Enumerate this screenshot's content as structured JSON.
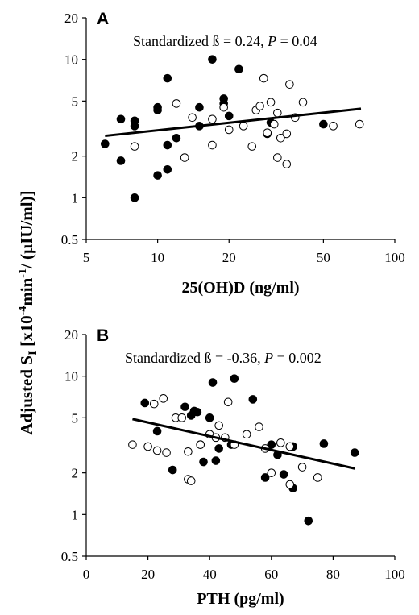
{
  "figure": {
    "ylabel_shared": "Adjusted S",
    "ylabel_sub": "I",
    "ylabel_rest": " [x10",
    "ylabel_sup": "-4",
    "ylabel_tail1": "min",
    "ylabel_sup2": "-1",
    "ylabel_tail2": "/ (µIU/ml)]"
  },
  "chart_data": [
    {
      "type": "scatter",
      "panel_label": "A",
      "annotation": "Standardized ß = 0.24, ",
      "annotation_p": "P",
      "annotation_end": " = 0.04",
      "xlabel": "25(OH)D (ng/ml)",
      "ylabel": "Adjusted S_I [x10^-4 min^-1 / (µIU/ml)]",
      "xscale": "log",
      "yscale": "log",
      "xlim": [
        5,
        100
      ],
      "ylim": [
        0.5,
        20
      ],
      "xticks": [
        "5",
        "10",
        "20",
        "50",
        "100"
      ],
      "xtick_values": [
        5,
        10,
        20,
        50,
        100
      ],
      "yticks": [
        "0.5",
        "1",
        "2",
        "5",
        "10",
        "20"
      ],
      "ytick_values": [
        0.5,
        1,
        2,
        5,
        10,
        20
      ],
      "grid": false,
      "fit_line": {
        "x": [
          6,
          72
        ],
        "y": [
          2.8,
          4.4
        ]
      },
      "series": [
        {
          "marker": "filled",
          "points": [
            [
              6,
              2.45
            ],
            [
              7,
              3.7
            ],
            [
              7,
              1.85
            ],
            [
              8,
              3.6
            ],
            [
              8,
              3.3
            ],
            [
              8,
              1.0
            ],
            [
              10,
              4.3
            ],
            [
              10,
              4.5
            ],
            [
              10,
              1.45
            ],
            [
              11,
              7.3
            ],
            [
              11,
              2.4
            ],
            [
              11,
              1.6
            ],
            [
              12,
              2.7
            ],
            [
              15,
              4.5
            ],
            [
              15,
              3.3
            ],
            [
              17,
              10.0
            ],
            [
              19,
              4.8
            ],
            [
              19,
              5.2
            ],
            [
              20,
              3.9
            ],
            [
              22,
              8.5
            ],
            [
              29,
              2.9
            ],
            [
              30,
              3.5
            ],
            [
              50,
              3.4
            ]
          ]
        },
        {
          "marker": "open",
          "points": [
            [
              8,
              2.35
            ],
            [
              12,
              4.8
            ],
            [
              13,
              1.95
            ],
            [
              14,
              3.8
            ],
            [
              17,
              2.4
            ],
            [
              17,
              3.7
            ],
            [
              19,
              4.5
            ],
            [
              20,
              3.1
            ],
            [
              23,
              3.3
            ],
            [
              25,
              2.35
            ],
            [
              26,
              4.3
            ],
            [
              27,
              4.6
            ],
            [
              28,
              7.3
            ],
            [
              29,
              2.95
            ],
            [
              30,
              4.9
            ],
            [
              31,
              3.4
            ],
            [
              32,
              4.1
            ],
            [
              33,
              2.7
            ],
            [
              35,
              2.9
            ],
            [
              36,
              6.6
            ],
            [
              38,
              3.8
            ],
            [
              41,
              4.9
            ],
            [
              32,
              1.95
            ],
            [
              35,
              1.75
            ],
            [
              55,
              3.3
            ],
            [
              71,
              3.4
            ]
          ]
        }
      ]
    },
    {
      "type": "scatter",
      "panel_label": "B",
      "annotation": "Standardized ß = -0.36, ",
      "annotation_p": "P",
      "annotation_end": " = 0.002",
      "xlabel": "PTH (pg/ml)",
      "ylabel": "Adjusted S_I [x10^-4 min^-1 / (µIU/ml)]",
      "xscale": "linear",
      "yscale": "log",
      "xlim": [
        0,
        100
      ],
      "ylim": [
        0.5,
        20
      ],
      "xticks": [
        "0",
        "20",
        "40",
        "60",
        "80",
        "100"
      ],
      "xtick_values": [
        0,
        20,
        40,
        60,
        80,
        100
      ],
      "yticks": [
        "0.5",
        "1",
        "2",
        "5",
        "10",
        "20"
      ],
      "ytick_values": [
        0.5,
        1,
        2,
        5,
        10,
        20
      ],
      "grid": false,
      "fit_line": {
        "x": [
          15,
          87
        ],
        "y": [
          4.9,
          2.15
        ]
      },
      "series": [
        {
          "marker": "filled",
          "points": [
            [
              19,
              6.4
            ],
            [
              23,
              4.0
            ],
            [
              28,
              2.1
            ],
            [
              32,
              6.0
            ],
            [
              34,
              5.2
            ],
            [
              35,
              5.6
            ],
            [
              36,
              5.5
            ],
            [
              38,
              2.4
            ],
            [
              40,
              5.0
            ],
            [
              41,
              9.0
            ],
            [
              42,
              2.45
            ],
            [
              43,
              3.0
            ],
            [
              47,
              3.2
            ],
            [
              48,
              9.6
            ],
            [
              54,
              6.8
            ],
            [
              58,
              1.85
            ],
            [
              60,
              3.2
            ],
            [
              62,
              2.7
            ],
            [
              64,
              1.95
            ],
            [
              67,
              1.55
            ],
            [
              67,
              3.1
            ],
            [
              72,
              0.9
            ],
            [
              77,
              3.25
            ],
            [
              87,
              2.8
            ]
          ]
        },
        {
          "marker": "open",
          "points": [
            [
              15,
              3.2
            ],
            [
              20,
              3.1
            ],
            [
              22,
              6.3
            ],
            [
              23,
              2.9
            ],
            [
              25,
              6.9
            ],
            [
              26,
              2.8
            ],
            [
              29,
              5.0
            ],
            [
              31,
              5.0
            ],
            [
              33,
              2.85
            ],
            [
              33,
              1.8
            ],
            [
              34,
              1.75
            ],
            [
              37,
              3.2
            ],
            [
              40,
              3.8
            ],
            [
              42,
              3.6
            ],
            [
              43,
              4.4
            ],
            [
              45,
              3.6
            ],
            [
              46,
              6.5
            ],
            [
              48,
              3.2
            ],
            [
              52,
              3.8
            ],
            [
              56,
              4.3
            ],
            [
              58,
              3.0
            ],
            [
              60,
              2.0
            ],
            [
              63,
              3.3
            ],
            [
              66,
              1.65
            ],
            [
              70,
              2.2
            ],
            [
              75,
              1.85
            ],
            [
              66,
              3.1
            ],
            [
              37,
              3.2
            ]
          ]
        }
      ]
    }
  ]
}
